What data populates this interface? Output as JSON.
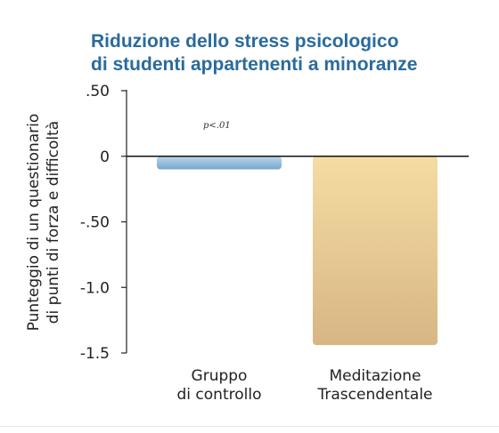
{
  "chart_data": {
    "type": "bar",
    "title": [
      "Riduzione dello stress psicologico",
      "di studenti appartenenti a minoranze"
    ],
    "ylabel": [
      "Punteggio di un questionario",
      "di punti di forza e difficoltà"
    ],
    "xlabel": "",
    "categories": [
      [
        "Gruppo",
        "di controllo"
      ],
      [
        "Meditazione",
        "Trascendentale"
      ]
    ],
    "values": [
      -0.1,
      -1.44
    ],
    "ylim": [
      -1.5,
      0.5
    ],
    "yticks": [
      0.5,
      0,
      -0.5,
      -1.0,
      -1.5
    ],
    "ytick_labels": [
      ".50",
      "0",
      "-.50",
      "-1.0",
      "-1.5"
    ],
    "annotation": "p<.01",
    "colors": {
      "title": "#2a6b9c",
      "bar_control_top": "#bcd6ea",
      "bar_control_bottom": "#76a7cf",
      "bar_tm_top": "#f5dca2",
      "bar_tm_bottom": "#d7b684",
      "axis": "#222222",
      "zero_line": "#111111"
    },
    "grid": false,
    "legend": "none"
  }
}
